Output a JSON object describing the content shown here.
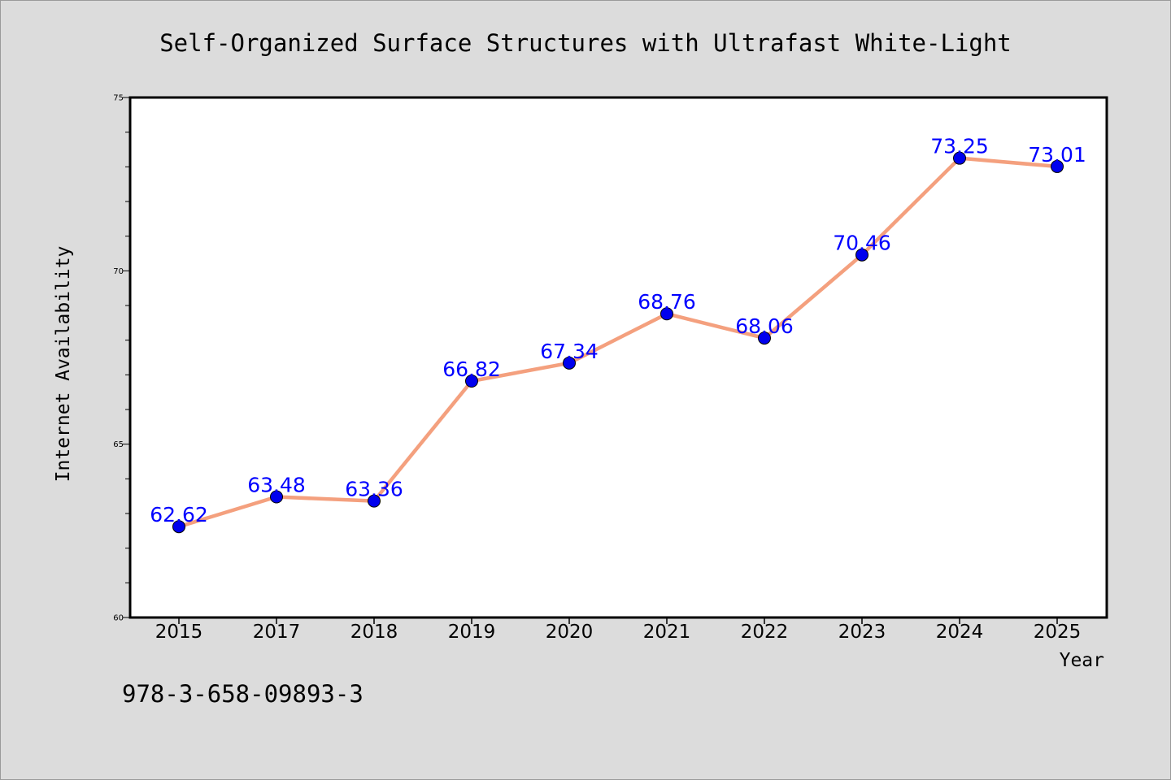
{
  "chart_data": {
    "type": "line",
    "title": "Self-Organized Surface Structures with Ultrafast White-Light",
    "xlabel": "Year",
    "ylabel": "Internet Availability",
    "categories": [
      "2015",
      "2017",
      "2018",
      "2019",
      "2020",
      "2021",
      "2022",
      "2023",
      "2024",
      "2025"
    ],
    "series": [
      {
        "values": [
          62.62,
          63.48,
          63.36,
          66.82,
          67.34,
          68.76,
          68.06,
          70.46,
          73.25,
          73.01
        ],
        "line_color": "#f4a07e",
        "marker_color": "#0000ee"
      }
    ],
    "data_labels": [
      "62.62",
      "63.48",
      "63.36",
      "66.82",
      "67.34",
      "68.76",
      "68.06",
      "70.46",
      "73.25",
      "73.01"
    ],
    "ylim": [
      60,
      75
    ],
    "yticks": [
      "60",
      "65",
      "70",
      "75"
    ],
    "yticks_values": [
      60,
      65,
      70,
      75
    ],
    "grid": false,
    "legend": "none",
    "label_color": "#0000ff"
  },
  "footer": {
    "text": "978-3-658-09893-3"
  }
}
